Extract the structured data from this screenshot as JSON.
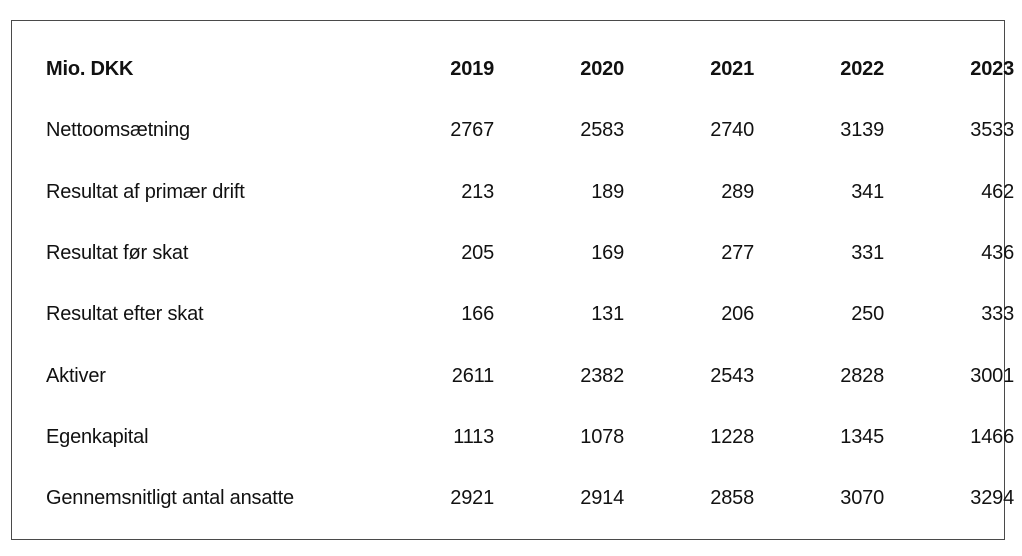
{
  "table": {
    "header": {
      "label": "Mio. DKK",
      "years": [
        "2019",
        "2020",
        "2021",
        "2022",
        "2023"
      ]
    },
    "rows": [
      {
        "label": "Nettoomsætning",
        "values": [
          "2767",
          "2583",
          "2740",
          "3139",
          "3533"
        ]
      },
      {
        "label": "Resultat af primær drift",
        "values": [
          "213",
          "189",
          "289",
          "341",
          "462"
        ]
      },
      {
        "label": "Resultat før skat",
        "values": [
          "205",
          "169",
          "277",
          "331",
          "436"
        ]
      },
      {
        "label": "Resultat efter skat",
        "values": [
          "166",
          "131",
          "206",
          "250",
          "333"
        ]
      },
      {
        "label": "Aktiver",
        "values": [
          "2611",
          "2382",
          "2543",
          "2828",
          "3001"
        ]
      },
      {
        "label": "Egenkapital",
        "values": [
          "1113",
          "1078",
          "1228",
          "1345",
          "1466"
        ]
      },
      {
        "label": "Gennemsnitligt antal ansatte",
        "values": [
          "2921",
          "2914",
          "2858",
          "3070",
          "3294"
        ]
      }
    ]
  }
}
